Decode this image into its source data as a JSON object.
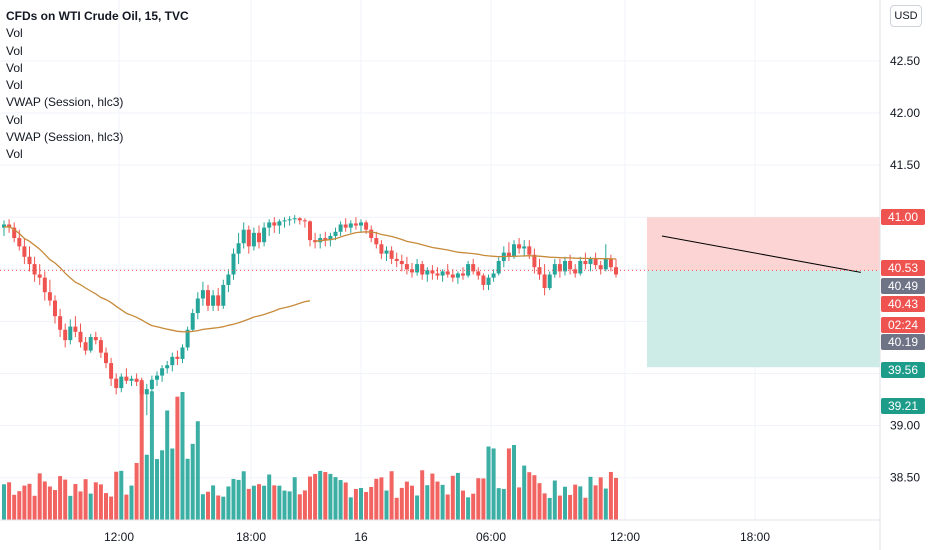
{
  "legend": {
    "title": "CFDs on WTI Crude Oil, 15, TVC",
    "indicators": [
      "Vol",
      "Vol",
      "Vol",
      "Vol",
      "VWAP (Session, hlc3)",
      "Vol",
      "VWAP (Session, hlc3)",
      "Vol"
    ]
  },
  "currency_button": "USD",
  "colors": {
    "up": "#26a69a",
    "down": "#ef5350",
    "vwap": "#c78a3a",
    "trendline": "#000000",
    "stop_zone": "#fbd4d3",
    "target_zone": "#cdece8",
    "tag_red": "#ef5350",
    "tag_green": "#1e9c8a",
    "tag_gray": "#6e7386",
    "grid": "#f0f3fa"
  },
  "chart_data": {
    "type": "candlestick",
    "title": "CFDs on WTI Crude Oil, 15, TVC",
    "x_ticks": [
      "12:00",
      "18:00",
      "16",
      "06:00",
      "12:00",
      "18:00"
    ],
    "y_ticks": [
      "42.50",
      "42.00",
      "41.50",
      "39.00",
      "38.50"
    ],
    "y_range": [
      38.1,
      43.05
    ],
    "grid": true,
    "price_tags": [
      {
        "label": "41.00",
        "color": "red",
        "price": 41.0
      },
      {
        "label": "40.53",
        "color": "red",
        "price": 40.53
      },
      {
        "label": "40.49",
        "color": "gray",
        "price": 40.49
      },
      {
        "label": "40.43",
        "color": "red",
        "price": 40.43
      },
      {
        "label": "02:24",
        "color": "red",
        "price": 40.31
      },
      {
        "label": "40.19",
        "color": "gray",
        "price": 40.19
      },
      {
        "label": "39.56",
        "color": "green",
        "price": 39.56
      },
      {
        "label": "39.21",
        "color": "green",
        "price": 39.21
      }
    ],
    "position": {
      "entry": 40.49,
      "stop": 41.0,
      "target": 39.56
    },
    "current_price": 40.49,
    "trendline": {
      "from": {
        "bar": 129,
        "price": 40.82
      },
      "to": {
        "bar": 168,
        "price": 40.47
      }
    },
    "candles_ohlc": [
      [
        40.9,
        40.97,
        40.82,
        40.93
      ],
      [
        40.93,
        40.98,
        40.85,
        40.9
      ],
      [
        40.9,
        40.95,
        40.76,
        40.8
      ],
      [
        40.8,
        40.88,
        40.68,
        40.72
      ],
      [
        40.72,
        40.8,
        40.55,
        40.62
      ],
      [
        40.62,
        40.72,
        40.48,
        40.55
      ],
      [
        40.55,
        40.62,
        40.38,
        40.45
      ],
      [
        40.45,
        40.55,
        40.35,
        40.42
      ],
      [
        40.42,
        40.48,
        40.2,
        40.28
      ],
      [
        40.28,
        40.4,
        40.15,
        40.2
      ],
      [
        40.2,
        40.25,
        39.98,
        40.05
      ],
      [
        40.05,
        40.12,
        39.85,
        39.92
      ],
      [
        39.92,
        39.98,
        39.75,
        39.82
      ],
      [
        39.82,
        40.02,
        39.78,
        39.95
      ],
      [
        39.95,
        40.05,
        39.85,
        39.9
      ],
      [
        39.9,
        39.98,
        39.75,
        39.8
      ],
      [
        39.8,
        39.85,
        39.68,
        39.72
      ],
      [
        39.72,
        39.88,
        39.7,
        39.85
      ],
      [
        39.85,
        39.9,
        39.78,
        39.82
      ],
      [
        39.82,
        39.85,
        39.65,
        39.7
      ],
      [
        39.7,
        39.75,
        39.55,
        39.6
      ],
      [
        39.6,
        39.65,
        39.38,
        39.45
      ],
      [
        39.45,
        39.5,
        39.3,
        39.36
      ],
      [
        39.36,
        39.5,
        39.32,
        39.47
      ],
      [
        39.47,
        39.55,
        39.4,
        39.43
      ],
      [
        39.43,
        39.48,
        39.38,
        39.45
      ],
      [
        39.45,
        39.5,
        39.38,
        39.42
      ],
      [
        39.42,
        39.46,
        39.24,
        39.3
      ],
      [
        39.3,
        39.4,
        39.1,
        39.35
      ],
      [
        39.35,
        39.48,
        39.3,
        39.44
      ],
      [
        39.44,
        39.52,
        39.38,
        39.48
      ],
      [
        39.48,
        39.58,
        39.42,
        39.55
      ],
      [
        39.55,
        39.62,
        39.5,
        39.58
      ],
      [
        39.58,
        39.7,
        39.52,
        39.66
      ],
      [
        39.66,
        39.72,
        39.58,
        39.64
      ],
      [
        39.64,
        39.78,
        39.6,
        39.75
      ],
      [
        39.75,
        39.95,
        39.72,
        39.92
      ],
      [
        39.92,
        40.12,
        39.9,
        40.08
      ],
      [
        40.08,
        40.28,
        40.02,
        40.22
      ],
      [
        40.22,
        40.38,
        40.15,
        40.3
      ],
      [
        40.3,
        40.35,
        40.1,
        40.15
      ],
      [
        40.15,
        40.3,
        40.1,
        40.25
      ],
      [
        40.25,
        40.32,
        40.1,
        40.15
      ],
      [
        40.15,
        40.4,
        40.12,
        40.35
      ],
      [
        40.35,
        40.5,
        40.28,
        40.45
      ],
      [
        40.45,
        40.7,
        40.4,
        40.65
      ],
      [
        40.65,
        40.85,
        40.55,
        40.75
      ],
      [
        40.75,
        40.95,
        40.7,
        40.88
      ],
      [
        40.88,
        40.92,
        40.65,
        40.72
      ],
      [
        40.72,
        40.9,
        40.68,
        40.85
      ],
      [
        40.85,
        40.92,
        40.7,
        40.76
      ],
      [
        40.76,
        40.95,
        40.72,
        40.9
      ],
      [
        40.9,
        40.98,
        40.82,
        40.95
      ],
      [
        40.95,
        41.0,
        40.85,
        40.92
      ],
      [
        40.92,
        40.98,
        40.84,
        40.96
      ],
      [
        40.96,
        41.0,
        40.9,
        40.97
      ],
      [
        40.97,
        41.01,
        40.92,
        40.98
      ],
      [
        40.98,
        41.02,
        40.94,
        40.99
      ],
      [
        40.99,
        41.0,
        40.93,
        40.97
      ],
      [
        40.97,
        40.99,
        40.9,
        40.96
      ],
      [
        40.96,
        40.97,
        40.72,
        40.78
      ],
      [
        40.78,
        40.85,
        40.7,
        40.76
      ],
      [
        40.76,
        40.84,
        40.7,
        40.8
      ],
      [
        40.8,
        40.86,
        40.72,
        40.78
      ],
      [
        40.78,
        40.85,
        40.72,
        40.82
      ],
      [
        40.82,
        40.9,
        40.78,
        40.86
      ],
      [
        40.86,
        40.96,
        40.82,
        40.93
      ],
      [
        40.93,
        40.99,
        40.86,
        40.9
      ],
      [
        40.9,
        40.97,
        40.85,
        40.94
      ],
      [
        40.94,
        41.0,
        40.88,
        40.92
      ],
      [
        40.92,
        40.98,
        40.85,
        40.95
      ],
      [
        40.95,
        40.97,
        40.84,
        40.88
      ],
      [
        40.88,
        40.92,
        40.76,
        40.8
      ],
      [
        40.8,
        40.86,
        40.7,
        40.74
      ],
      [
        40.74,
        40.78,
        40.6,
        40.65
      ],
      [
        40.65,
        40.72,
        40.58,
        40.68
      ],
      [
        40.68,
        40.72,
        40.55,
        40.6
      ],
      [
        40.6,
        40.66,
        40.52,
        40.58
      ],
      [
        40.58,
        40.64,
        40.48,
        40.55
      ],
      [
        40.55,
        40.62,
        40.45,
        40.5
      ],
      [
        40.5,
        40.56,
        40.42,
        40.47
      ],
      [
        40.47,
        40.6,
        40.44,
        40.55
      ],
      [
        40.55,
        40.58,
        40.4,
        40.45
      ],
      [
        40.45,
        40.52,
        40.38,
        40.49
      ],
      [
        40.49,
        40.54,
        40.4,
        40.46
      ],
      [
        40.46,
        40.52,
        40.4,
        40.44
      ],
      [
        40.44,
        40.5,
        40.38,
        40.48
      ],
      [
        40.48,
        40.55,
        40.42,
        40.45
      ],
      [
        40.45,
        40.5,
        40.38,
        40.42
      ],
      [
        40.42,
        40.48,
        40.36,
        40.46
      ],
      [
        40.46,
        40.52,
        40.4,
        40.44
      ],
      [
        40.44,
        40.58,
        40.42,
        40.55
      ],
      [
        40.55,
        40.6,
        40.45,
        40.48
      ],
      [
        40.48,
        40.52,
        40.4,
        40.44
      ],
      [
        40.44,
        40.46,
        40.3,
        40.35
      ],
      [
        40.35,
        40.45,
        40.3,
        40.42
      ],
      [
        40.42,
        40.5,
        40.38,
        40.46
      ],
      [
        40.46,
        40.62,
        40.44,
        40.58
      ],
      [
        40.58,
        40.72,
        40.52,
        40.66
      ],
      [
        40.66,
        40.76,
        40.58,
        40.62
      ],
      [
        40.62,
        40.78,
        40.6,
        40.74
      ],
      [
        40.74,
        40.8,
        40.65,
        40.7
      ],
      [
        40.7,
        40.78,
        40.62,
        40.72
      ],
      [
        40.72,
        40.78,
        40.6,
        40.64
      ],
      [
        40.64,
        40.7,
        40.46,
        40.52
      ],
      [
        40.52,
        40.6,
        40.4,
        40.45
      ],
      [
        40.45,
        40.55,
        40.25,
        40.32
      ],
      [
        40.32,
        40.48,
        40.3,
        40.45
      ],
      [
        40.45,
        40.6,
        40.42,
        40.55
      ],
      [
        40.55,
        40.6,
        40.42,
        40.48
      ],
      [
        40.48,
        40.62,
        40.44,
        40.58
      ],
      [
        40.58,
        40.64,
        40.45,
        40.5
      ],
      [
        40.5,
        40.55,
        40.42,
        40.46
      ],
      [
        40.46,
        40.62,
        40.44,
        40.58
      ],
      [
        40.58,
        40.66,
        40.5,
        40.55
      ],
      [
        40.55,
        40.62,
        40.48,
        40.6
      ],
      [
        40.6,
        40.66,
        40.5,
        40.54
      ],
      [
        40.54,
        40.58,
        40.45,
        40.5
      ],
      [
        40.5,
        40.74,
        40.48,
        40.6
      ],
      [
        40.6,
        40.64,
        40.48,
        40.52
      ],
      [
        40.52,
        40.6,
        40.42,
        40.45
      ]
    ],
    "volume_scale_note": "Volume histogram beneath the price pane; axis not labeled",
    "vwap": "Session VWAP line overlaid (two sessions)"
  }
}
